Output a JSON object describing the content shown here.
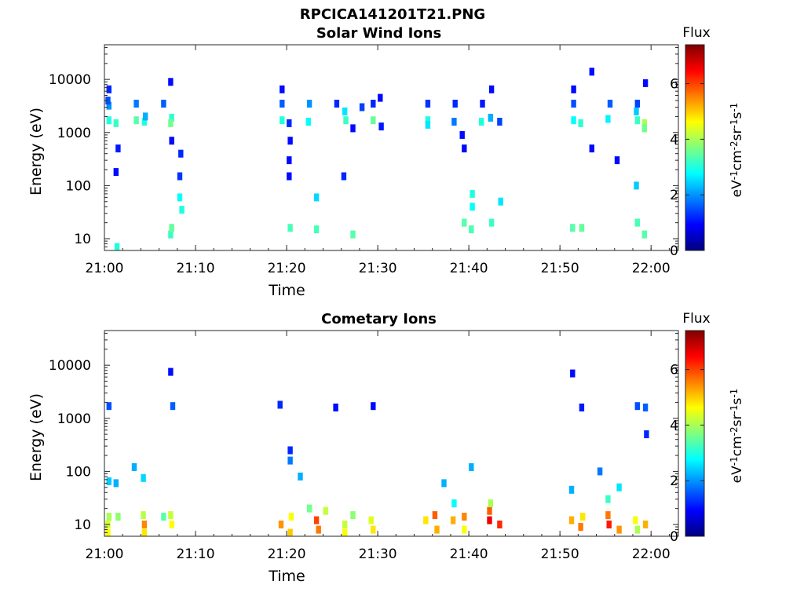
{
  "figure": {
    "title": "RPCICA141201T21.PNG"
  },
  "colorbar": {
    "title": "Flux",
    "label_parts": [
      "eV",
      "-1",
      "cm",
      "-2",
      "sr",
      "-1",
      "s",
      "-1"
    ],
    "ticks": [
      0,
      2,
      4,
      6
    ],
    "range": [
      0,
      7.4
    ],
    "colormap": "jet",
    "colors": [
      "#00007f",
      "#0000ff",
      "#007fff",
      "#00ffff",
      "#7fff7f",
      "#ffff00",
      "#ff7f00",
      "#ff0000",
      "#7f0000"
    ]
  },
  "chart_data": [
    {
      "type": "heatmap",
      "title": "Solar Wind Ions",
      "xlabel": "Time",
      "ylabel": "Energy (eV)",
      "yscale": "log",
      "xlim": [
        "21:00",
        "22:03"
      ],
      "ylim": [
        6,
        45000
      ],
      "xticks": [
        "21:00",
        "21:10",
        "21:20",
        "21:30",
        "21:40",
        "21:50",
        "22:00"
      ],
      "yticks": [
        10,
        100,
        1000,
        10000
      ],
      "ytick_labels": [
        "10",
        "100",
        "1000",
        "10000"
      ],
      "clim": [
        0,
        7.4
      ],
      "cells": [
        [
          "21:00",
          3200,
          2.0
        ],
        [
          "21:00",
          1700,
          3.0
        ],
        [
          "21:01",
          1500,
          3.2
        ],
        [
          "21:00",
          4000,
          1.5
        ],
        [
          "21:00",
          6500,
          1.2
        ],
        [
          "21:01",
          500,
          1.1
        ],
        [
          "21:01",
          180,
          1.0
        ],
        [
          "21:01",
          7,
          3.0
        ],
        [
          "21:03",
          3500,
          1.8
        ],
        [
          "21:03",
          1700,
          3.4
        ],
        [
          "21:04",
          1600,
          3.0
        ],
        [
          "21:04",
          2000,
          2.2
        ],
        [
          "21:06",
          3500,
          1.6
        ],
        [
          "21:07",
          1900,
          3.1
        ],
        [
          "21:07",
          1500,
          3.6
        ],
        [
          "21:07",
          9000,
          1.0
        ],
        [
          "21:07",
          700,
          1.0
        ],
        [
          "21:08",
          400,
          1.2
        ],
        [
          "21:08",
          150,
          1.3
        ],
        [
          "21:08",
          60,
          2.8
        ],
        [
          "21:07",
          12,
          3.2
        ],
        [
          "21:07",
          16,
          3.5
        ],
        [
          "21:08",
          35,
          3.0
        ],
        [
          "21:19",
          6500,
          1.0
        ],
        [
          "21:19",
          3500,
          1.6
        ],
        [
          "21:19",
          1700,
          3.0
        ],
        [
          "21:20",
          1500,
          1.2
        ],
        [
          "21:20",
          700,
          1.0
        ],
        [
          "21:20",
          300,
          1.0
        ],
        [
          "21:20",
          150,
          1.0
        ],
        [
          "21:20",
          16,
          3.3
        ],
        [
          "21:22",
          3500,
          2.0
        ],
        [
          "21:22",
          1600,
          2.8
        ],
        [
          "21:23",
          60,
          2.5
        ],
        [
          "21:23",
          15,
          3.3
        ],
        [
          "21:25",
          3500,
          1.2
        ],
        [
          "21:26",
          1700,
          3.2
        ],
        [
          "21:26",
          2500,
          2.6
        ],
        [
          "21:27",
          1200,
          1.0
        ],
        [
          "21:26",
          150,
          1.2
        ],
        [
          "21:27",
          12,
          3.4
        ],
        [
          "21:28",
          3000,
          1.4
        ],
        [
          "21:29",
          1700,
          3.5
        ],
        [
          "21:29",
          3500,
          1.2
        ],
        [
          "21:30",
          1300,
          1.1
        ],
        [
          "21:30",
          4500,
          1.0
        ],
        [
          "21:35",
          3500,
          1.3
        ],
        [
          "21:35",
          1700,
          3.0
        ],
        [
          "21:35",
          1400,
          2.6
        ],
        [
          "21:38",
          3500,
          1.2
        ],
        [
          "21:38",
          1600,
          1.8
        ],
        [
          "21:39",
          900,
          1.0
        ],
        [
          "21:39",
          500,
          1.0
        ],
        [
          "21:40",
          70,
          3.0
        ],
        [
          "21:40",
          40,
          2.8
        ],
        [
          "21:39",
          20,
          3.4
        ],
        [
          "21:40",
          15,
          3.3
        ],
        [
          "21:42",
          20,
          3.2
        ],
        [
          "21:43",
          50,
          2.6
        ],
        [
          "21:41",
          3500,
          1.1
        ],
        [
          "21:41",
          1600,
          3.0
        ],
        [
          "21:42",
          1900,
          2.2
        ],
        [
          "21:42",
          6500,
          1.0
        ],
        [
          "21:43",
          1600,
          1.4
        ],
        [
          "21:51",
          6500,
          1.0
        ],
        [
          "21:51",
          3500,
          1.5
        ],
        [
          "21:51",
          1700,
          2.8
        ],
        [
          "21:52",
          1500,
          3.1
        ],
        [
          "21:53",
          500,
          1.0
        ],
        [
          "21:53",
          14000,
          1.0
        ],
        [
          "21:51",
          16,
          3.4
        ],
        [
          "21:52",
          16,
          3.5
        ],
        [
          "21:55",
          3500,
          1.6
        ],
        [
          "21:55",
          1800,
          2.7
        ],
        [
          "21:56",
          300,
          1.0
        ],
        [
          "21:58",
          3500,
          1.4
        ],
        [
          "21:58",
          2500,
          2.4
        ],
        [
          "21:58",
          1700,
          3.2
        ],
        [
          "21:59",
          1500,
          4.0
        ],
        [
          "21:59",
          1200,
          3.6
        ],
        [
          "21:59",
          8500,
          1.0
        ],
        [
          "21:58",
          20,
          3.3
        ],
        [
          "21:59",
          12,
          3.4
        ],
        [
          "21:58",
          100,
          2.4
        ]
      ]
    },
    {
      "type": "heatmap",
      "title": "Cometary Ions",
      "xlabel": "Time",
      "ylabel": "Energy (eV)",
      "yscale": "log",
      "xlim": [
        "21:00",
        "22:03"
      ],
      "ylim": [
        6,
        45000
      ],
      "xticks": [
        "21:00",
        "21:10",
        "21:20",
        "21:30",
        "21:40",
        "21:50",
        "22:00"
      ],
      "yticks": [
        10,
        100,
        1000,
        10000
      ],
      "ytick_labels": [
        "10",
        "100",
        "1000",
        "10000"
      ],
      "clim": [
        0,
        7.4
      ],
      "cells": [
        [
          "21:00",
          1700,
          1.5
        ],
        [
          "21:00",
          65,
          2.4
        ],
        [
          "21:01",
          60,
          2.2
        ],
        [
          "21:00",
          14,
          4.0
        ],
        [
          "21:00",
          10,
          4.3
        ],
        [
          "21:00",
          7,
          4.6
        ],
        [
          "21:01",
          14,
          3.8
        ],
        [
          "21:03",
          120,
          2.2
        ],
        [
          "21:04",
          75,
          2.5
        ],
        [
          "21:04",
          15,
          4.1
        ],
        [
          "21:04",
          10,
          5.5
        ],
        [
          "21:04",
          7,
          4.8
        ],
        [
          "21:06",
          14,
          3.4
        ],
        [
          "21:07",
          15,
          4.2
        ],
        [
          "21:07",
          10,
          4.6
        ],
        [
          "21:07",
          1700,
          1.6
        ],
        [
          "21:07",
          7500,
          1.0
        ],
        [
          "21:19",
          1800,
          1.2
        ],
        [
          "21:20",
          250,
          1.2
        ],
        [
          "21:20",
          160,
          1.8
        ],
        [
          "21:21",
          80,
          2.2
        ],
        [
          "21:19",
          10,
          5.4
        ],
        [
          "21:20",
          14,
          4.6
        ],
        [
          "21:20",
          7,
          5.0
        ],
        [
          "21:22",
          20,
          3.6
        ],
        [
          "21:23",
          12,
          6.0
        ],
        [
          "21:23",
          8,
          5.6
        ],
        [
          "21:24",
          18,
          4.2
        ],
        [
          "21:25",
          1600,
          1.0
        ],
        [
          "21:26",
          10,
          4.2
        ],
        [
          "21:26",
          7,
          4.6
        ],
        [
          "21:27",
          15,
          3.8
        ],
        [
          "21:29",
          1700,
          1.0
        ],
        [
          "21:29",
          8,
          4.8
        ],
        [
          "21:29",
          12,
          4.4
        ],
        [
          "21:35",
          12,
          4.8
        ],
        [
          "21:36",
          15,
          5.8
        ],
        [
          "21:36",
          8,
          5.2
        ],
        [
          "21:37",
          60,
          2.2
        ],
        [
          "21:38",
          25,
          2.8
        ],
        [
          "21:38",
          12,
          5.2
        ],
        [
          "21:39",
          14,
          5.5
        ],
        [
          "21:39",
          8,
          4.6
        ],
        [
          "21:40",
          120,
          2.2
        ],
        [
          "21:42",
          18,
          5.8
        ],
        [
          "21:42",
          12,
          6.6
        ],
        [
          "21:43",
          10,
          6.2
        ],
        [
          "21:42",
          25,
          4.0
        ],
        [
          "21:51",
          45,
          2.2
        ],
        [
          "21:51",
          7000,
          1.0
        ],
        [
          "21:52",
          1600,
          1.1
        ],
        [
          "21:51",
          12,
          5.2
        ],
        [
          "21:52",
          9,
          5.6
        ],
        [
          "21:52",
          14,
          4.8
        ],
        [
          "21:54",
          100,
          1.8
        ],
        [
          "21:55",
          15,
          5.6
        ],
        [
          "21:55",
          10,
          6.3
        ],
        [
          "21:56",
          8,
          5.4
        ],
        [
          "21:55",
          30,
          3.2
        ],
        [
          "21:56",
          50,
          2.6
        ],
        [
          "21:58",
          1700,
          1.5
        ],
        [
          "21:59",
          1600,
          1.6
        ],
        [
          "21:59",
          500,
          1.2
        ],
        [
          "21:58",
          12,
          4.6
        ],
        [
          "21:58",
          8,
          4.0
        ],
        [
          "21:59",
          10,
          5.2
        ]
      ]
    }
  ]
}
